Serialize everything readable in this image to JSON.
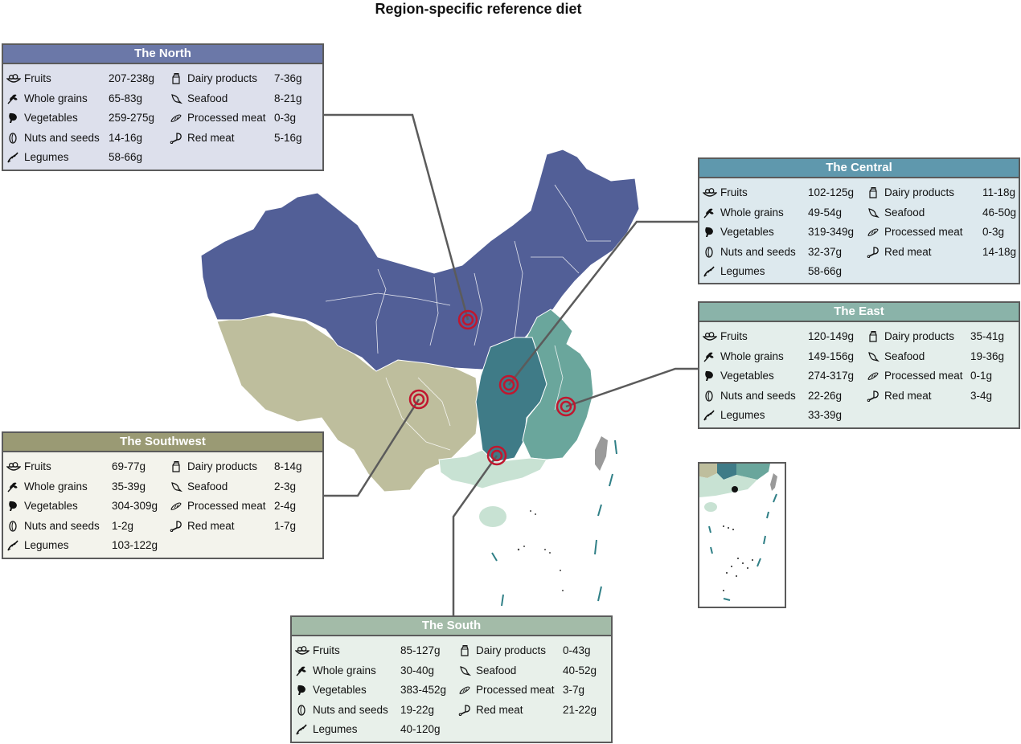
{
  "title": "Region-specific reference diet",
  "colors": {
    "north_header": "#6b78a8",
    "north_body": "#dde0ec",
    "north_map": "#525f97",
    "central_header": "#5f98ad",
    "central_body": "#dde9ee",
    "central_map": "#3f7b87",
    "east_header": "#8ab3a9",
    "east_body": "#e4eeeb",
    "east_map": "#6aa69c",
    "southwest_header": "#9a9a74",
    "southwest_body": "#f3f3ec",
    "southwest_map": "#bebe9d",
    "south_header": "#a3bba8",
    "south_body": "#e8f0ea",
    "south_map": "#c8e2d3",
    "marker": "#c0172f",
    "leader": "#5b5b5b"
  },
  "categories": [
    {
      "label": "Fruits",
      "icon": "fruit-bowl-icon"
    },
    {
      "label": "Whole grains",
      "icon": "wheat-icon"
    },
    {
      "label": "Vegetables",
      "icon": "vegetable-icon"
    },
    {
      "label": "Nuts and seeds",
      "icon": "seed-icon"
    },
    {
      "label": "Legumes",
      "icon": "legume-icon"
    },
    {
      "label": "Dairy products",
      "icon": "milk-carton-icon"
    },
    {
      "label": "Seafood",
      "icon": "fish-icon"
    },
    {
      "label": "Processed meat",
      "icon": "sausage-icon"
    },
    {
      "label": "Red meat",
      "icon": "drumstick-icon"
    }
  ],
  "regions": [
    {
      "id": "north",
      "name": "The North",
      "values": [
        "207-238g",
        "65-83g",
        "259-275g",
        "14-16g",
        "58-66g",
        "7-36g",
        "8-21g",
        "0-3g",
        "5-16g"
      ]
    },
    {
      "id": "central",
      "name": "The Central",
      "values": [
        "102-125g",
        "49-54g",
        "319-349g",
        "32-37g",
        "58-66g",
        "11-18g",
        "46-50g",
        "0-3g",
        "14-18g"
      ]
    },
    {
      "id": "east",
      "name": "The East",
      "values": [
        "120-149g",
        "149-156g",
        "274-317g",
        "22-26g",
        "33-39g",
        "35-41g",
        "19-36g",
        "0-1g",
        "3-4g"
      ]
    },
    {
      "id": "southwest",
      "name": "The Southwest",
      "values": [
        "69-77g",
        "35-39g",
        "304-309g",
        "1-2g",
        "103-122g",
        "8-14g",
        "2-3g",
        "2-4g",
        "1-7g"
      ]
    },
    {
      "id": "south",
      "name": "The South",
      "values": [
        "85-127g",
        "30-40g",
        "383-452g",
        "19-22g",
        "40-120g",
        "0-43g",
        "40-52g",
        "3-7g",
        "21-22g"
      ]
    }
  ]
}
